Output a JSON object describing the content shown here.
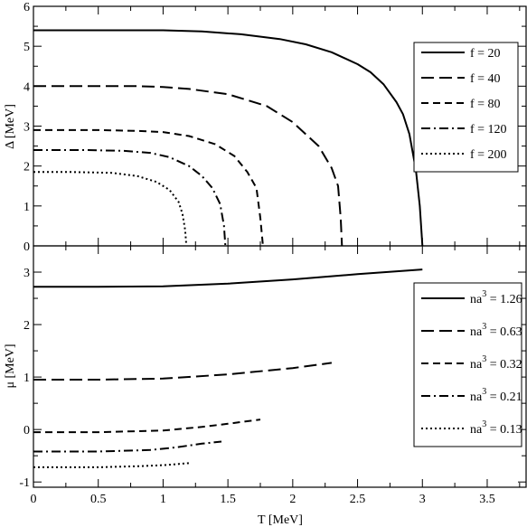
{
  "chart_data": [
    {
      "type": "line",
      "xlabel": "T [MeV]",
      "ylabel": "Δ  [MeV]",
      "xlim": [
        0,
        3.8
      ],
      "ylim": [
        0,
        6
      ],
      "xticks": [
        "0",
        "0.5",
        "1",
        "1.5",
        "2",
        "2.5",
        "3",
        "3.5"
      ],
      "yticks": [
        "0",
        "1",
        "2",
        "3",
        "4",
        "5",
        "6"
      ],
      "grid": false,
      "legend": "right",
      "series": [
        {
          "name": "f = 20",
          "style": "solid",
          "x": [
            0,
            0.5,
            1.0,
            1.3,
            1.6,
            1.9,
            2.1,
            2.3,
            2.5,
            2.6,
            2.7,
            2.8,
            2.85,
            2.9,
            2.95,
            2.98,
            3.0
          ],
          "y": [
            5.4,
            5.4,
            5.4,
            5.37,
            5.3,
            5.18,
            5.05,
            4.85,
            4.55,
            4.35,
            4.05,
            3.6,
            3.3,
            2.8,
            1.9,
            1.0,
            0.0
          ]
        },
        {
          "name": "f = 40",
          "style": "long-dash",
          "x": [
            0,
            0.5,
            0.8,
            1.0,
            1.2,
            1.5,
            1.8,
            2.0,
            2.2,
            2.3,
            2.35,
            2.37,
            2.38
          ],
          "y": [
            4.0,
            4.0,
            4.0,
            3.98,
            3.93,
            3.8,
            3.5,
            3.1,
            2.5,
            1.95,
            1.5,
            0.7,
            0.0
          ]
        },
        {
          "name": "f = 80",
          "style": "dash",
          "x": [
            0,
            0.5,
            0.8,
            1.0,
            1.2,
            1.4,
            1.55,
            1.65,
            1.72,
            1.75,
            1.77
          ],
          "y": [
            2.9,
            2.9,
            2.88,
            2.85,
            2.75,
            2.55,
            2.25,
            1.85,
            1.45,
            0.7,
            0.0
          ]
        },
        {
          "name": "f = 120",
          "style": "dash-dot",
          "x": [
            0,
            0.4,
            0.7,
            0.9,
            1.05,
            1.2,
            1.3,
            1.38,
            1.44,
            1.47,
            1.48
          ],
          "y": [
            2.4,
            2.4,
            2.38,
            2.33,
            2.22,
            2.0,
            1.75,
            1.45,
            1.05,
            0.5,
            0.0
          ]
        },
        {
          "name": "f = 200",
          "style": "dot",
          "x": [
            0,
            0.3,
            0.6,
            0.8,
            0.95,
            1.05,
            1.12,
            1.15,
            1.17,
            1.18
          ],
          "y": [
            1.85,
            1.85,
            1.83,
            1.75,
            1.6,
            1.4,
            1.1,
            0.8,
            0.4,
            0.0
          ]
        }
      ]
    },
    {
      "type": "line",
      "xlabel": "T [MeV]",
      "ylabel": "μ  [MeV]",
      "xlim": [
        0,
        3.8
      ],
      "ylim": [
        -1.1,
        3.5
      ],
      "xticks": [
        "0",
        "0.5",
        "1",
        "1.5",
        "2",
        "2.5",
        "3",
        "3.5"
      ],
      "yticks": [
        "-1",
        "0",
        "1",
        "2",
        "3"
      ],
      "grid": false,
      "legend": "right",
      "series": [
        {
          "name_base": "na",
          "name_sup": "3",
          "name_value": " = 1.26",
          "style": "solid",
          "x": [
            0,
            0.5,
            1.0,
            1.5,
            2.0,
            2.5,
            3.0
          ],
          "y": [
            2.72,
            2.72,
            2.73,
            2.78,
            2.86,
            2.96,
            3.05
          ]
        },
        {
          "name_base": "na",
          "name_sup": "3",
          "name_value": " = 0.63",
          "style": "long-dash",
          "x": [
            0,
            0.5,
            1.0,
            1.5,
            2.0,
            2.3
          ],
          "y": [
            0.95,
            0.95,
            0.97,
            1.05,
            1.17,
            1.27
          ]
        },
        {
          "name_base": "na",
          "name_sup": "3",
          "name_value": " = 0.32",
          "style": "dash",
          "x": [
            0,
            0.5,
            1.0,
            1.3,
            1.5,
            1.75
          ],
          "y": [
            -0.05,
            -0.05,
            -0.02,
            0.05,
            0.11,
            0.19
          ]
        },
        {
          "name_base": "na",
          "name_sup": "3",
          "name_value": " = 0.21",
          "style": "dash-dot",
          "x": [
            0,
            0.5,
            0.9,
            1.1,
            1.3,
            1.45
          ],
          "y": [
            -0.42,
            -0.42,
            -0.39,
            -0.34,
            -0.27,
            -0.23
          ]
        },
        {
          "name_base": "na",
          "name_sup": "3",
          "name_value": " = 0.13",
          "style": "dot",
          "x": [
            0,
            0.5,
            0.8,
            1.0,
            1.1,
            1.2
          ],
          "y": [
            -0.72,
            -0.72,
            -0.7,
            -0.68,
            -0.66,
            -0.64
          ]
        }
      ]
    }
  ]
}
